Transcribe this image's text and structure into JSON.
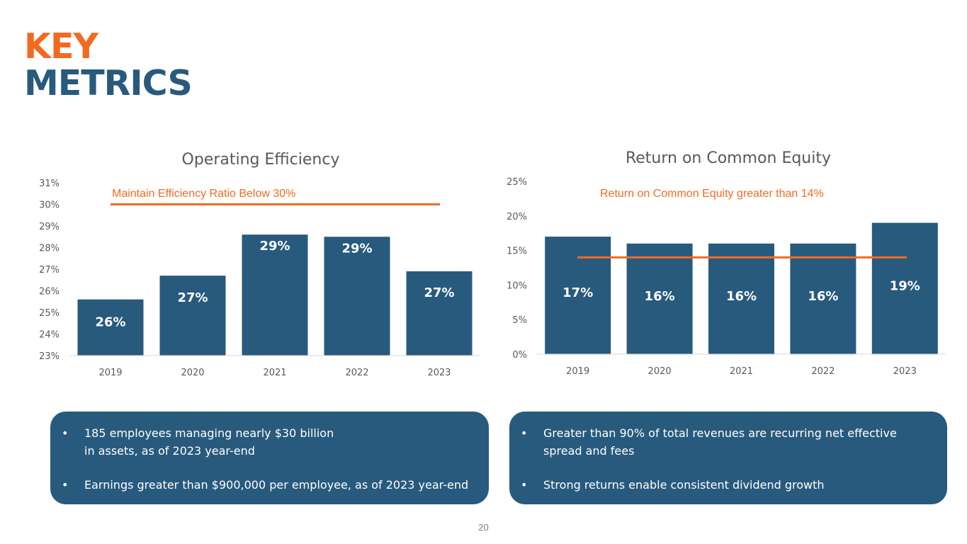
{
  "header": {
    "title_line1": "KEY",
    "title_line2": "METRICS"
  },
  "colors": {
    "accent": "#f26a21",
    "brand": "#285a7d",
    "text_gray": "#595959",
    "axis_line": "#d9d9d9"
  },
  "chart_data": [
    {
      "type": "bar",
      "title": "Operating Efficiency",
      "categories": [
        "2019",
        "2020",
        "2021",
        "2022",
        "2023"
      ],
      "values": [
        25.6,
        26.7,
        28.6,
        28.5,
        26.9
      ],
      "data_labels": [
        "26%",
        "27%",
        "29%",
        "29%",
        "27%"
      ],
      "ylim": [
        23,
        31
      ],
      "yticks": [
        23,
        24,
        25,
        26,
        27,
        28,
        29,
        30,
        31
      ],
      "ytick_labels": [
        "23%",
        "24%",
        "25%",
        "26%",
        "27%",
        "28%",
        "29%",
        "30%",
        "31%"
      ],
      "xlabel": "",
      "ylabel": "",
      "grid": false,
      "target_line": {
        "value": 30,
        "label": "Maintain Efficiency Ratio Below 30%"
      },
      "bar_color": "#285a7d"
    },
    {
      "type": "bar",
      "title": "Return on Common Equity",
      "categories": [
        "2019",
        "2020",
        "2021",
        "2022",
        "2023"
      ],
      "values": [
        17,
        16,
        16,
        16,
        19
      ],
      "data_labels": [
        "17%",
        "16%",
        "16%",
        "16%",
        "19%"
      ],
      "ylim": [
        0,
        25
      ],
      "yticks": [
        0,
        5,
        10,
        15,
        20,
        25
      ],
      "ytick_labels": [
        "0%",
        "5%",
        "10%",
        "15%",
        "20%",
        "25%"
      ],
      "xlabel": "",
      "ylabel": "",
      "grid": false,
      "target_line": {
        "value": 14,
        "label": "Return on Common Equity greater than 14%"
      },
      "bar_color": "#285a7d"
    }
  ],
  "info_boxes": [
    {
      "bullets": [
        {
          "lines": [
            "185 employees managing nearly $30 billion",
            "in assets, as of 2023 year-end"
          ]
        },
        {
          "lines": [
            "Earnings greater than $900,000 per employee, as of 2023 year-end"
          ]
        }
      ]
    },
    {
      "bullets": [
        {
          "lines": [
            "Greater than 90% of total revenues are recurring net effective",
            "spread and fees"
          ]
        },
        {
          "lines": [
            "Strong returns enable consistent dividend growth"
          ]
        }
      ]
    }
  ],
  "bullet_glyph": "•",
  "footer": {
    "page_number": "20"
  }
}
